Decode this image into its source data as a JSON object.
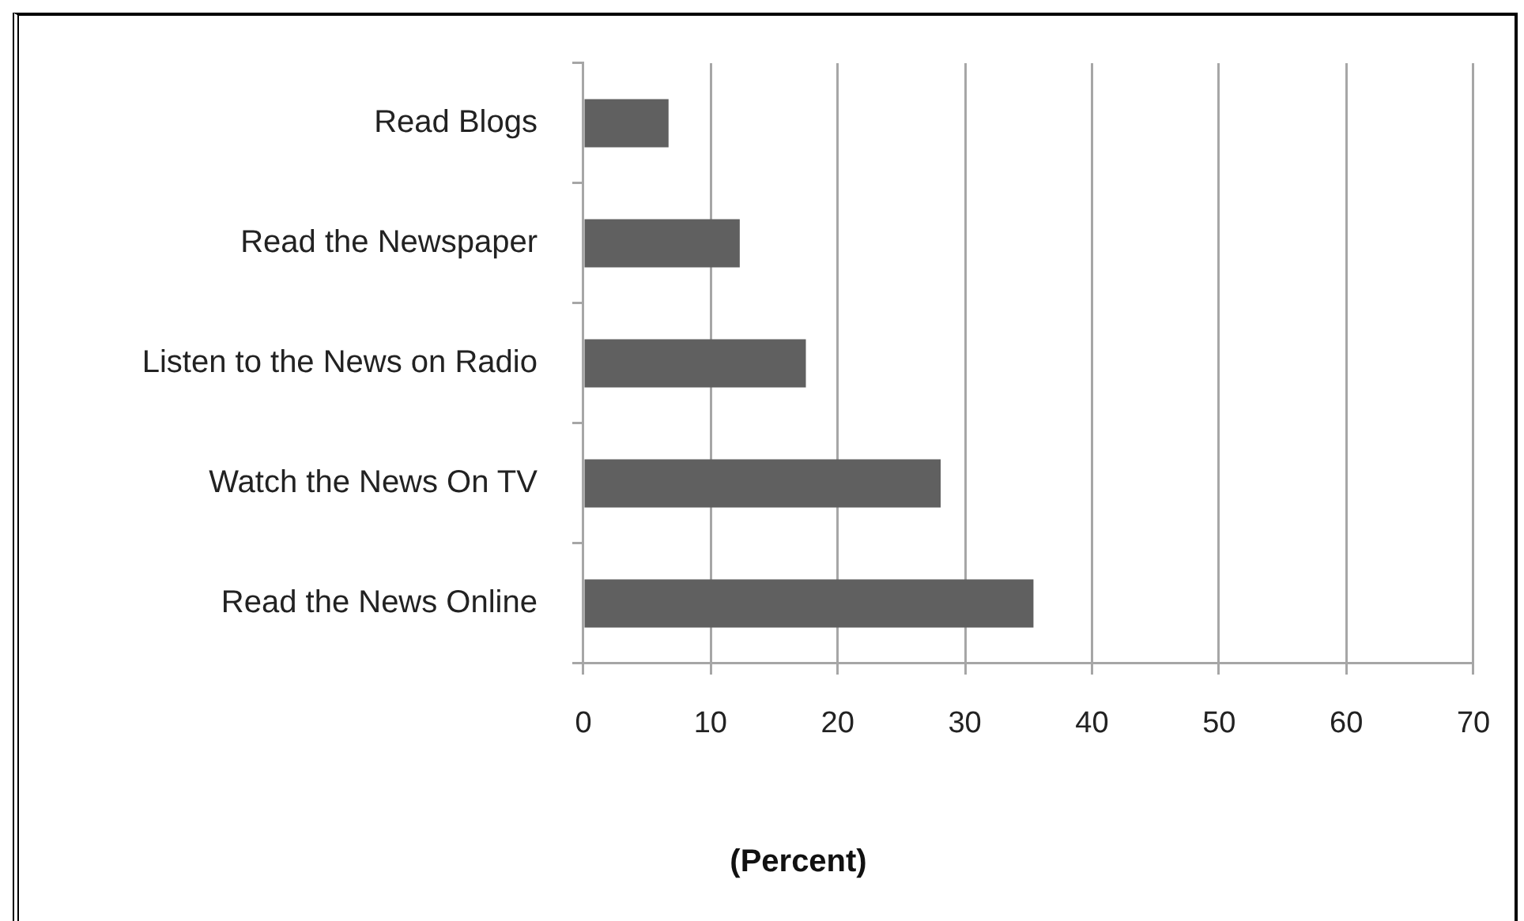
{
  "chart_data": {
    "type": "bar",
    "orientation": "horizontal",
    "categories": [
      "Read Blogs",
      "Read the Newspaper",
      "Listen to the News on Radio",
      "Watch the News On TV",
      "Read the News Online"
    ],
    "values": [
      6.7,
      12.3,
      17.5,
      28.1,
      35.4
    ],
    "color": "#606060",
    "xlabel": "(Percent)",
    "xlim": [
      0,
      70
    ],
    "xticks": [
      0,
      10,
      20,
      30,
      40,
      50,
      60,
      70
    ],
    "grid": "x"
  }
}
